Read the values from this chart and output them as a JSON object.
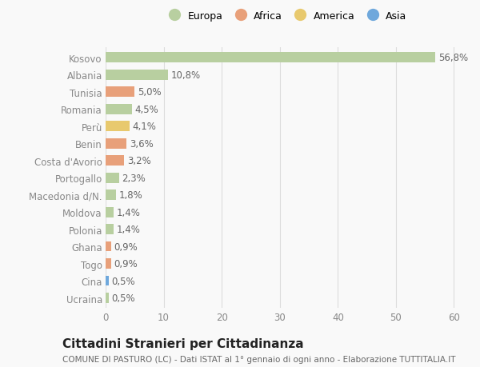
{
  "categories": [
    "Ucraina",
    "Cina",
    "Togo",
    "Ghana",
    "Polonia",
    "Moldova",
    "Macedonia d/N.",
    "Portogallo",
    "Costa d'Avorio",
    "Benin",
    "Perù",
    "Romania",
    "Tunisia",
    "Albania",
    "Kosovo"
  ],
  "values": [
    0.5,
    0.5,
    0.9,
    0.9,
    1.4,
    1.4,
    1.8,
    2.3,
    3.2,
    3.6,
    4.1,
    4.5,
    5.0,
    10.8,
    56.8
  ],
  "labels": [
    "0,5%",
    "0,5%",
    "0,9%",
    "0,9%",
    "1,4%",
    "1,4%",
    "1,8%",
    "2,3%",
    "3,2%",
    "3,6%",
    "4,1%",
    "4,5%",
    "5,0%",
    "10,8%",
    "56,8%"
  ],
  "colors": [
    "#b8cfa0",
    "#6fa8dc",
    "#e8a07a",
    "#e8a07a",
    "#b8cfa0",
    "#b8cfa0",
    "#b8cfa0",
    "#b8cfa0",
    "#e8a07a",
    "#e8a07a",
    "#e8c96e",
    "#b8cfa0",
    "#e8a07a",
    "#b8cfa0",
    "#b8cfa0"
  ],
  "legend": [
    {
      "label": "Europa",
      "color": "#b8cfa0"
    },
    {
      "label": "Africa",
      "color": "#e8a07a"
    },
    {
      "label": "America",
      "color": "#e8c96e"
    },
    {
      "label": "Asia",
      "color": "#6fa8dc"
    }
  ],
  "title": "Cittadini Stranieri per Cittadinanza",
  "subtitle": "COMUNE DI PASTURO (LC) - Dati ISTAT al 1° gennaio di ogni anno - Elaborazione TUTTITALIA.IT",
  "xlim": [
    0,
    62
  ],
  "xticks": [
    0,
    10,
    20,
    30,
    40,
    50,
    60
  ],
  "background_color": "#f9f9f9",
  "grid_color": "#dddddd",
  "bar_height": 0.6,
  "label_fontsize": 8.5,
  "title_fontsize": 11,
  "subtitle_fontsize": 7.5,
  "tick_fontsize": 8.5,
  "label_color": "#666666",
  "tick_color": "#888888"
}
